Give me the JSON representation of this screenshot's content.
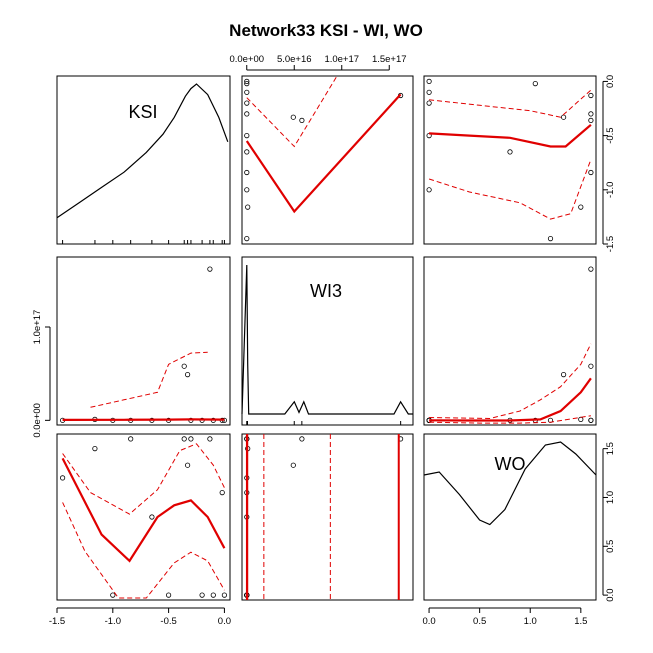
{
  "chart_data": {
    "type": "scatter",
    "title": "Network33 KSI - WI, WO",
    "variables": [
      "KSI",
      "WI3",
      "WO"
    ],
    "diag_labels": [
      "KSI",
      "WI3",
      "WO"
    ],
    "grid": false,
    "colors": {
      "smooth": "#e00000",
      "points": "#000000",
      "density": "#000000"
    },
    "axes": {
      "KSI": {
        "range": [
          -1.5,
          0.05
        ],
        "ticks": [
          -1.5,
          -1.0,
          -0.5,
          0.0
        ],
        "tick_labels": [
          "-1.5",
          "-1.0",
          "-0.5",
          "0.0"
        ]
      },
      "WI3": {
        "range": [
          -5000000000000000.0,
          1.75e+17
        ],
        "ticks": [
          0,
          5e+16,
          1e+17,
          1.5e+17
        ],
        "tick_labels_top": [
          "0.0e+00",
          "5.0e+16",
          "1.0e+17",
          "1.5e+17"
        ],
        "left_ticks": [
          0,
          1e+17
        ],
        "tick_labels_left": [
          "0.0e+00",
          "1.0e+17"
        ]
      },
      "WO": {
        "range": [
          -0.05,
          1.65
        ],
        "ticks": [
          0,
          0.5,
          1.0,
          1.5
        ],
        "tick_labels": [
          "0.0",
          "0.5",
          "1.0",
          "1.5"
        ]
      }
    },
    "ksi_axis_right_ticks": [
      0.0,
      -0.5,
      -1.0,
      -1.5
    ],
    "ksi_axis_right_labels": [
      "0.0",
      "-0.5",
      "-1.0",
      "-1.5"
    ],
    "wo_axis_right_ticks": [
      0.0,
      0.5,
      1.0,
      1.5
    ],
    "wo_axis_right_labels": [
      "0.0",
      "0.5",
      "1.0",
      "1.5"
    ],
    "points": {
      "KSI": [
        -1.45,
        -1.16,
        -1.0,
        -0.84,
        -0.65,
        -0.5,
        -0.36,
        -0.33,
        -0.3,
        -0.2,
        -0.13,
        -0.1,
        -0.02,
        0.0
      ],
      "WI3": [
        0,
        1000000000000000.0,
        0,
        0,
        0,
        0,
        5.8e+16,
        4.9e+16,
        0,
        0,
        1.62e+17,
        0,
        0,
        0
      ],
      "WO": [
        1.2,
        1.5,
        0.0,
        1.6,
        0.8,
        0.0,
        1.6,
        1.33,
        1.6,
        0.0,
        1.6,
        0.0,
        1.05,
        0.0
      ]
    },
    "density_KSI": {
      "x": [
        -1.5,
        -1.3,
        -1.1,
        -0.9,
        -0.7,
        -0.55,
        -0.45,
        -0.35,
        -0.3,
        -0.25,
        -0.15,
        -0.05,
        0.03
      ],
      "y": [
        0.12,
        0.22,
        0.32,
        0.42,
        0.55,
        0.67,
        0.78,
        0.92,
        0.97,
        1.0,
        0.93,
        0.78,
        0.62
      ]
    },
    "density_WI3": {
      "x": [
        -5000000000000000.0,
        0,
        1000000000000000.0,
        2000000000000000.0,
        4e+16,
        5e+16,
        5.5e+16,
        6e+16,
        6.5e+16,
        1.55e+17,
        1.62e+17,
        1.7e+17,
        1.75e+17
      ],
      "y": [
        0.02,
        1.0,
        0.35,
        0.02,
        0.02,
        0.1,
        0.03,
        0.1,
        0.02,
        0.02,
        0.1,
        0.02,
        0.02
      ]
    },
    "density_WO": {
      "x": [
        -0.05,
        0.1,
        0.3,
        0.5,
        0.6,
        0.75,
        0.95,
        1.15,
        1.3,
        1.45,
        1.65
      ],
      "y": [
        0.78,
        0.8,
        0.65,
        0.48,
        0.45,
        0.55,
        0.82,
        0.98,
        1.0,
        0.92,
        0.78
      ]
    },
    "ticks_rug_KSI": [
      -1.45,
      -1.16,
      -1.0,
      -0.84,
      -0.65,
      -0.5,
      -0.36,
      -0.33,
      -0.3,
      -0.2,
      -0.13,
      -0.1,
      -0.02,
      0.0
    ],
    "ticks_rug_WI3": [
      0,
      400000000000000.0,
      800000000000000.0,
      5e+16,
      5.8e+16,
      1.62e+17
    ],
    "smooth": {
      "row1_col2": {
        "x": [
          0,
          5e+16,
          1.62e+17
        ],
        "y": [
          -0.55,
          -1.2,
          -0.12
        ],
        "upper_x": [
          0,
          5e+16,
          9.5e+16
        ],
        "upper_y": [
          -0.15,
          -0.6,
          0.05
        ],
        "lower_x": [],
        "lower_y": []
      },
      "row1_col3": {
        "x": [
          0,
          0.4,
          0.8,
          1.2,
          1.35,
          1.6
        ],
        "y": [
          -0.48,
          -0.5,
          -0.52,
          -0.6,
          -0.6,
          -0.4
        ],
        "upper_x": [
          0,
          0.5,
          1.0,
          1.3,
          1.6
        ],
        "upper_y": [
          -0.17,
          -0.22,
          -0.27,
          -0.33,
          -0.08
        ],
        "lower_x": [
          0,
          0.4,
          0.9,
          1.2,
          1.4,
          1.6
        ],
        "lower_y": [
          -0.9,
          -1.02,
          -1.12,
          -1.27,
          -1.22,
          -0.72
        ]
      },
      "row2_col1": {
        "x": [
          -1.45,
          -0.9,
          -0.5,
          -0.3,
          0.0
        ],
        "y": [
          500000000000000.0,
          600000000000000.0,
          800000000000000.0,
          1000000000000000.0,
          800000000000000.0
        ],
        "upper_x": [
          -1.2,
          -0.9,
          -0.6,
          -0.5,
          -0.3,
          -0.15
        ],
        "upper_y": [
          1.4e+16,
          2.2e+16,
          3e+16,
          6e+16,
          7.2e+16,
          7.3e+16
        ],
        "lower_x": [],
        "lower_y": []
      },
      "row2_col3": {
        "x": [
          0,
          0.4,
          0.8,
          1.1,
          1.3,
          1.5,
          1.6
        ],
        "y": [
          0,
          -200000000000000.0,
          -200000000000000.0,
          1000000000000000.0,
          1e+16,
          3e+16,
          4.5e+16
        ],
        "upper_x": [
          0,
          0.6,
          0.9,
          1.1,
          1.3,
          1.5,
          1.6
        ],
        "upper_y": [
          3000000000000000.0,
          2000000000000000.0,
          1e+16,
          2.2e+16,
          3.6e+16,
          6e+16,
          8.2e+16
        ],
        "lower_x": [
          0,
          0.5,
          0.9,
          1.2,
          1.6
        ],
        "lower_y": [
          -2000000000000000.0,
          -3000000000000000.0,
          -3000000000000000.0,
          -2000000000000000.0,
          5000000000000000.0
        ]
      },
      "row3_col1": {
        "x": [
          -1.45,
          -1.1,
          -0.85,
          -0.6,
          -0.45,
          -0.3,
          -0.15,
          0.0
        ],
        "y": [
          1.4,
          0.62,
          0.35,
          0.8,
          0.92,
          0.97,
          0.8,
          0.48
        ],
        "upper_x": [
          -1.45,
          -1.2,
          -0.85,
          -0.6,
          -0.4,
          -0.25,
          -0.1,
          0.0
        ],
        "upper_y": [
          1.45,
          1.05,
          0.83,
          1.08,
          1.48,
          1.55,
          1.33,
          1.1
        ],
        "lower_x": [
          -1.45,
          -1.25,
          -0.95,
          -0.7,
          -0.45,
          -0.3,
          -0.15,
          0.0
        ],
        "lower_y": [
          0.95,
          0.45,
          -0.03,
          -0.03,
          0.33,
          0.44,
          0.35,
          0.05
        ]
      },
      "row3_col2_lines_x": [
        200000000000000.0,
        500000000000000.0,
        1.6e+17
      ],
      "row3_col2_dashed_x": [
        1.8e+16,
        8.8e+16
      ]
    }
  }
}
